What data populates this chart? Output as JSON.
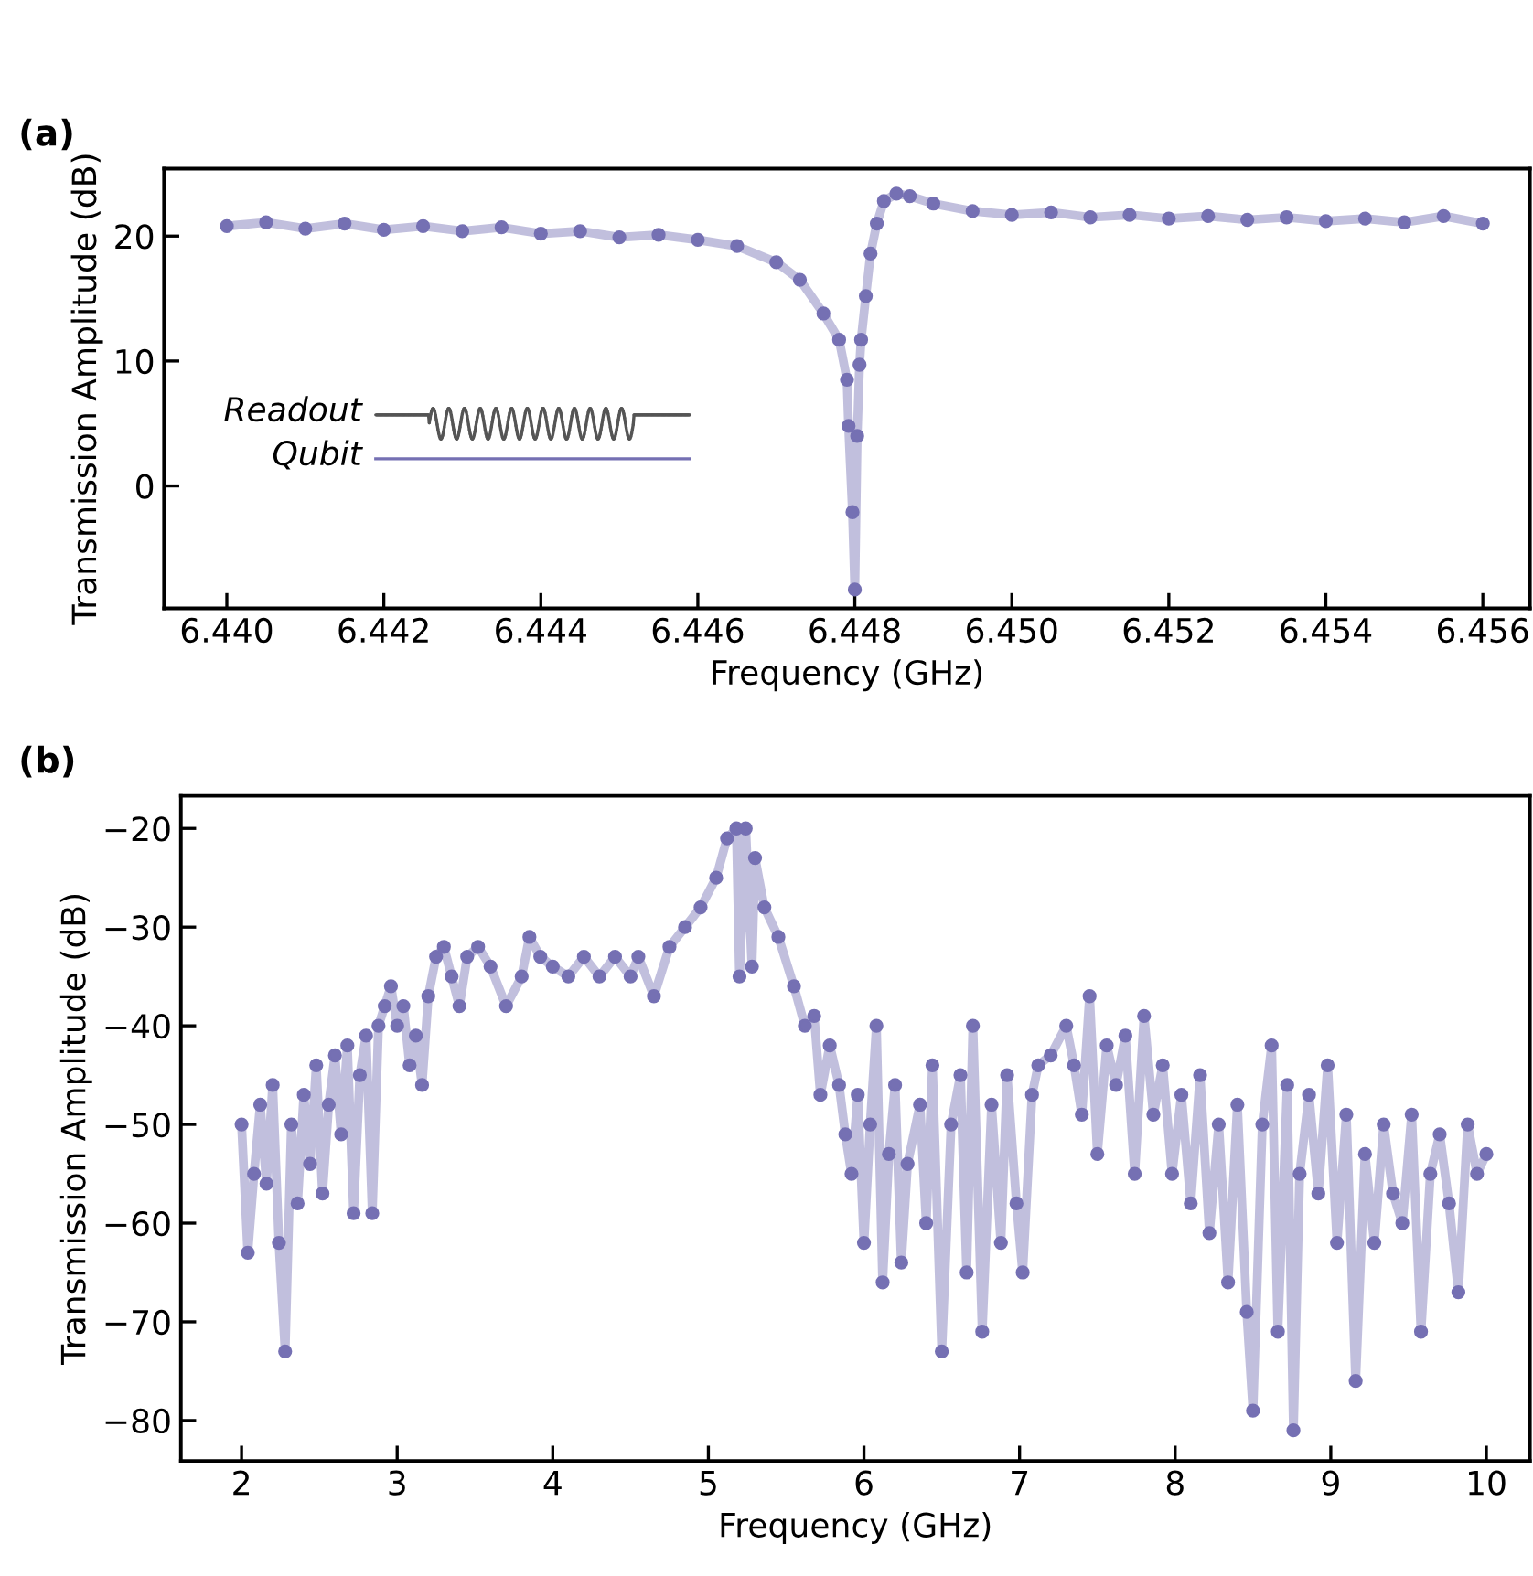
{
  "chart_data": [
    {
      "type": "line",
      "title": "(a)",
      "xlabel": "Frequency (GHz)",
      "ylabel": "Transmission Amplitude (dB)",
      "marker": "circle",
      "grid": false,
      "xlim": [
        6.4392,
        6.4566
      ],
      "ylim": [
        -9.8,
        25.4
      ],
      "xticks": [
        {
          "value": 6.44,
          "label": "6.440"
        },
        {
          "value": 6.442,
          "label": "6.442"
        },
        {
          "value": 6.444,
          "label": "6.444"
        },
        {
          "value": 6.446,
          "label": "6.446"
        },
        {
          "value": 6.448,
          "label": "6.448"
        },
        {
          "value": 6.45,
          "label": "6.450"
        },
        {
          "value": 6.452,
          "label": "6.452"
        },
        {
          "value": 6.454,
          "label": "6.454"
        },
        {
          "value": 6.456,
          "label": "6.456"
        }
      ],
      "yticks": [
        0,
        10,
        20
      ],
      "annotations": [
        "Readout",
        "Qubit"
      ],
      "series": [
        {
          "color": "#7570b3",
          "x": [
            6.44,
            6.4405,
            6.441,
            6.4415,
            6.442,
            6.4425,
            6.443,
            6.4435,
            6.444,
            6.4445,
            6.445,
            6.4455,
            6.446,
            6.4465,
            6.447,
            6.4473,
            6.4476,
            6.4478,
            6.4479,
            6.44792,
            6.44797,
            6.448,
            6.44803,
            6.44806,
            6.44808,
            6.44814,
            6.4482,
            6.44828,
            6.44837,
            6.44853,
            6.4487,
            6.449,
            6.4495,
            6.45,
            6.4505,
            6.451,
            6.4515,
            6.452,
            6.4525,
            6.453,
            6.4535,
            6.454,
            6.4545,
            6.455,
            6.4555,
            6.456
          ],
          "values": [
            20.8,
            21.1,
            20.6,
            21.0,
            20.5,
            20.8,
            20.4,
            20.7,
            20.2,
            20.4,
            19.9,
            20.1,
            19.7,
            19.2,
            17.9,
            16.5,
            13.8,
            11.7,
            8.5,
            4.8,
            -2.1,
            -8.3,
            4.0,
            9.7,
            11.7,
            15.2,
            18.6,
            21.0,
            22.8,
            23.4,
            23.2,
            22.6,
            22.0,
            21.7,
            21.9,
            21.5,
            21.7,
            21.4,
            21.6,
            21.3,
            21.5,
            21.2,
            21.4,
            21.1,
            21.6,
            21.0
          ]
        }
      ]
    },
    {
      "type": "line",
      "title": "(b)",
      "xlabel": "Frequency (GHz)",
      "ylabel": "Transmission Amplitude (dB)",
      "marker": "circle",
      "grid": false,
      "xlim": [
        1.61,
        10.28
      ],
      "ylim": [
        -84.1,
        -16.7
      ],
      "xticks": [
        2,
        3,
        4,
        5,
        6,
        7,
        8,
        9,
        10
      ],
      "yticks": [
        {
          "value": -80,
          "label": "−80"
        },
        {
          "value": -70,
          "label": "−70"
        },
        {
          "value": -60,
          "label": "−60"
        },
        {
          "value": -50,
          "label": "−50"
        },
        {
          "value": -40,
          "label": "−40"
        },
        {
          "value": -30,
          "label": "−30"
        },
        {
          "value": -20,
          "label": "−20"
        }
      ],
      "series": [
        {
          "color": "#7570b3",
          "x": [
            2.0,
            2.04,
            2.08,
            2.12,
            2.16,
            2.2,
            2.24,
            2.28,
            2.32,
            2.36,
            2.4,
            2.44,
            2.48,
            2.52,
            2.56,
            2.6,
            2.64,
            2.68,
            2.72,
            2.76,
            2.8,
            2.84,
            2.88,
            2.92,
            2.96,
            3.0,
            3.04,
            3.08,
            3.12,
            3.16,
            3.2,
            3.25,
            3.3,
            3.35,
            3.4,
            3.45,
            3.52,
            3.6,
            3.7,
            3.8,
            3.85,
            3.92,
            4.0,
            4.1,
            4.2,
            4.3,
            4.4,
            4.5,
            4.55,
            4.65,
            4.75,
            4.85,
            4.95,
            5.05,
            5.12,
            5.18,
            5.2,
            5.24,
            5.28,
            5.3,
            5.36,
            5.45,
            5.55,
            5.62,
            5.68,
            5.72,
            5.78,
            5.84,
            5.88,
            5.92,
            5.96,
            6.0,
            6.04,
            6.08,
            6.12,
            6.16,
            6.2,
            6.24,
            6.28,
            6.36,
            6.4,
            6.44,
            6.5,
            6.56,
            6.62,
            6.66,
            6.7,
            6.76,
            6.82,
            6.88,
            6.92,
            6.98,
            7.02,
            7.08,
            7.12,
            7.2,
            7.3,
            7.35,
            7.4,
            7.45,
            7.5,
            7.56,
            7.62,
            7.68,
            7.74,
            7.8,
            7.86,
            7.92,
            7.98,
            8.04,
            8.1,
            8.16,
            8.22,
            8.28,
            8.34,
            8.4,
            8.46,
            8.5,
            8.56,
            8.62,
            8.66,
            8.72,
            8.76,
            8.8,
            8.86,
            8.92,
            8.98,
            9.04,
            9.1,
            9.16,
            9.22,
            9.28,
            9.34,
            9.4,
            9.46,
            9.52,
            9.58,
            9.64,
            9.7,
            9.76,
            9.82,
            9.88,
            9.94,
            10.0
          ],
          "values": [
            -50,
            -63,
            -55,
            -48,
            -56,
            -46,
            -62,
            -73,
            -50,
            -58,
            -47,
            -54,
            -44,
            -57,
            -48,
            -43,
            -51,
            -42,
            -59,
            -45,
            -41,
            -59,
            -40,
            -38,
            -36,
            -40,
            -38,
            -44,
            -41,
            -46,
            -37,
            -33,
            -32,
            -35,
            -38,
            -33,
            -32,
            -34,
            -38,
            -35,
            -31,
            -33,
            -34,
            -35,
            -33,
            -35,
            -33,
            -35,
            -33,
            -37,
            -32,
            -30,
            -28,
            -25,
            -21,
            -20,
            -35,
            -20,
            -34,
            -23,
            -28,
            -31,
            -36,
            -40,
            -39,
            -47,
            -42,
            -46,
            -51,
            -55,
            -47,
            -62,
            -50,
            -40,
            -66,
            -53,
            -46,
            -64,
            -54,
            -48,
            -60,
            -44,
            -73,
            -50,
            -45,
            -65,
            -40,
            -71,
            -48,
            -62,
            -45,
            -58,
            -65,
            -47,
            -44,
            -43,
            -40,
            -44,
            -49,
            -37,
            -53,
            -42,
            -46,
            -41,
            -55,
            -39,
            -49,
            -44,
            -55,
            -47,
            -58,
            -45,
            -61,
            -50,
            -66,
            -48,
            -69,
            -79,
            -50,
            -42,
            -71,
            -46,
            -81,
            -55,
            -47,
            -57,
            -44,
            -62,
            -49,
            -76,
            -53,
            -62,
            -50,
            -57,
            -60,
            -49,
            -71,
            -55,
            -51,
            -58,
            -67,
            -50,
            -55,
            -53
          ]
        }
      ]
    }
  ]
}
